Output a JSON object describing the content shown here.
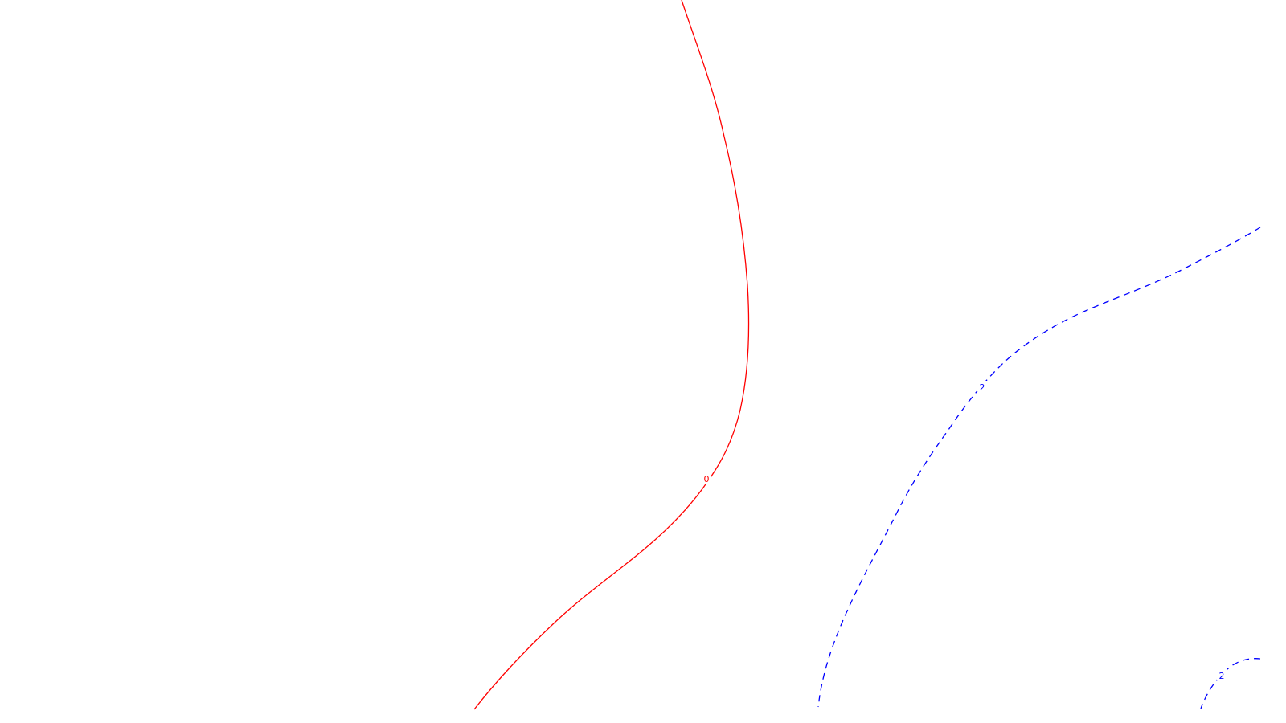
{
  "colors": {
    "background": "#ffffff",
    "zero_contour": "#ff0000",
    "positive_contour": "#0000ff"
  },
  "chart_data": {
    "type": "contour",
    "title": "",
    "xlabel": "",
    "ylabel": "",
    "axes_visible": false,
    "grid": false,
    "legend": "none",
    "contours": [
      {
        "level": 0,
        "label": "0",
        "color": "#ff0000",
        "style": "solid"
      },
      {
        "level": 2,
        "label": "2",
        "color": "#0000ff",
        "style": "dashed"
      },
      {
        "level": 2,
        "label": "2",
        "color": "#0000ff",
        "style": "dashed"
      }
    ]
  }
}
